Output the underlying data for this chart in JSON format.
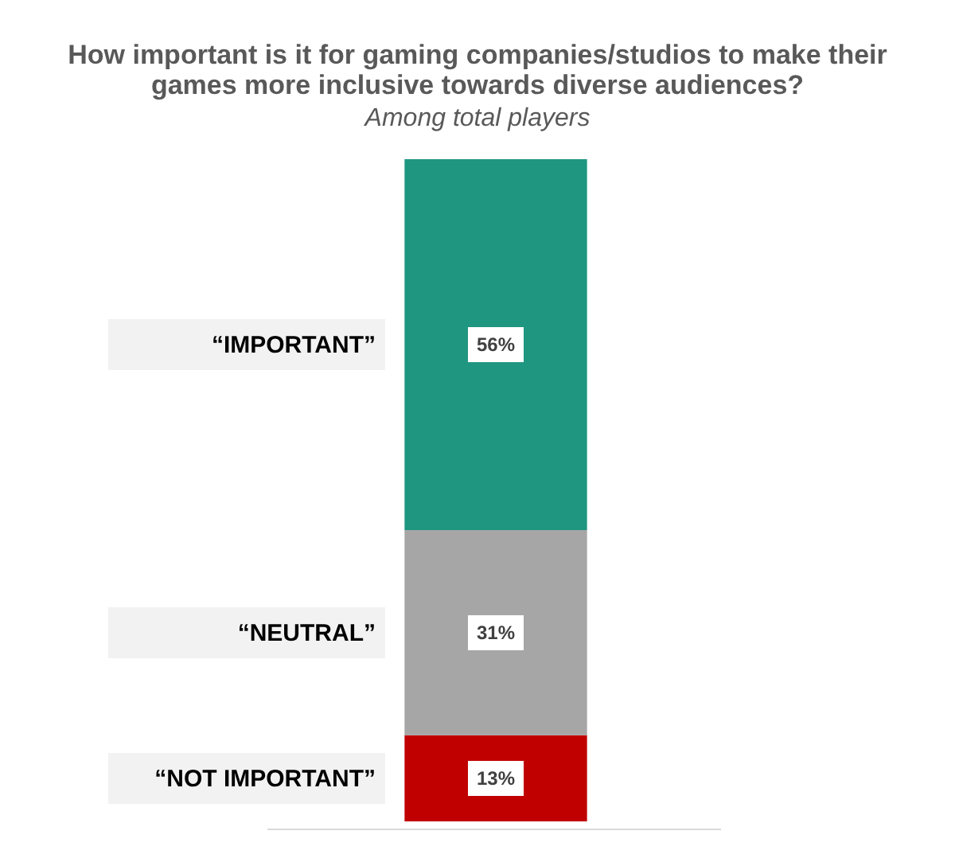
{
  "chart_data": {
    "type": "bar",
    "title": [
      "How important is it for gaming companies/studios to make their",
      "games more inclusive towards diverse audiences?"
    ],
    "subtitle": "Among total players",
    "stacked": true,
    "categories": [
      null
    ],
    "legend": false,
    "series": [
      {
        "name": "“NOT IMPORTANT”",
        "color": "#c00000",
        "values": [
          13
        ],
        "value_labels": [
          "13%"
        ]
      },
      {
        "name": "“NEUTRAL”",
        "color": "#a6a6a6",
        "values": [
          31
        ],
        "value_labels": [
          "31%"
        ]
      },
      {
        "name": "“IMPORTANT”",
        "color": "#1e9680",
        "values": [
          56
        ],
        "value_labels": [
          "56%"
        ]
      }
    ]
  }
}
